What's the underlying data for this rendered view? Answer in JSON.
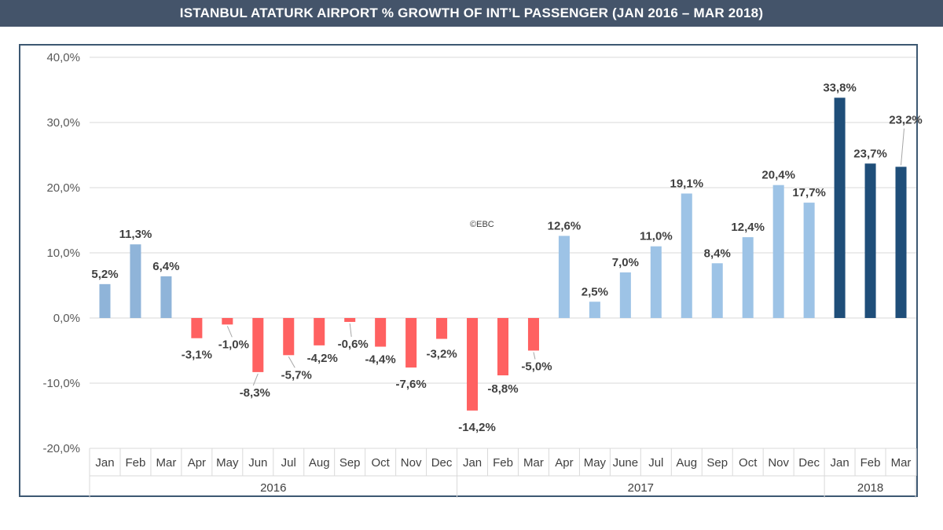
{
  "header": {
    "title": "ISTANBUL ATATURK AIRPORT % GROWTH OF INT’L PASSENGER (JAN 2016 – MAR 2018)"
  },
  "watermark": "©EBC",
  "colors": {
    "title_bg": "#44546a",
    "positive_2016": "#8fb4d9",
    "positive_2017": "#9dc3e6",
    "negative": "#ff6161",
    "year_2018": "#1f4e79",
    "grid": "#d9d9d9",
    "frame": "#3d5872"
  },
  "chart_data": {
    "type": "bar",
    "title": "ISTANBUL ATATURK AIRPORT % GROWTH OF INT’L PASSENGER (JAN 2016 – MAR 2018)",
    "ylim": [
      -20,
      40
    ],
    "yticks": [
      "40,0%",
      "30,0%",
      "20,0%",
      "10,0%",
      "0,0%",
      "-10,0%",
      "-20,0%"
    ],
    "ytick_values": [
      40,
      30,
      20,
      10,
      0,
      -10,
      -20
    ],
    "grid": true,
    "legend": "none",
    "years": [
      {
        "label": "2016",
        "count": 12
      },
      {
        "label": "2017",
        "count": 12
      },
      {
        "label": "2018",
        "count": 3
      }
    ],
    "categories": [
      "Jan",
      "Feb",
      "Mar",
      "Apr",
      "May",
      "Jun",
      "Jul",
      "Aug",
      "Sep",
      "Oct",
      "Nov",
      "Dec",
      "Jan",
      "Feb",
      "Mar",
      "Apr",
      "May",
      "June",
      "Jul",
      "Aug",
      "Sep",
      "Oct",
      "Nov",
      "Dec",
      "Jan",
      "Feb",
      "Mar"
    ],
    "values": [
      5.2,
      11.3,
      6.4,
      -3.1,
      -1.0,
      -8.3,
      -5.7,
      -4.2,
      -0.6,
      -4.4,
      -7.6,
      -3.2,
      -14.2,
      -8.8,
      -5.0,
      12.6,
      2.5,
      7.0,
      11.0,
      19.1,
      8.4,
      12.4,
      20.4,
      17.7,
      33.8,
      23.7,
      23.2
    ],
    "labels": [
      "5,2%",
      "11,3%",
      "6,4%",
      "-3,1%",
      "-1,0%",
      "-8,3%",
      "-5,7%",
      "-4,2%",
      "-0,6%",
      "-4,4%",
      "-7,6%",
      "-3,2%",
      "-14,2%",
      "-8,8%",
      "-5,0%",
      "12,6%",
      "2,5%",
      "7,0%",
      "11,0%",
      "19,1%",
      "8,4%",
      "12,4%",
      "20,4%",
      "17,7%",
      "33,8%",
      "23,7%",
      "23,2%"
    ],
    "color_keys": [
      "positive_2016",
      "positive_2016",
      "positive_2016",
      "negative",
      "negative",
      "negative",
      "negative",
      "negative",
      "negative",
      "negative",
      "negative",
      "negative",
      "negative",
      "negative",
      "negative",
      "positive_2017",
      "positive_2017",
      "positive_2017",
      "positive_2017",
      "positive_2017",
      "positive_2017",
      "positive_2017",
      "positive_2017",
      "positive_2017",
      "year_2018",
      "year_2018",
      "year_2018"
    ]
  }
}
